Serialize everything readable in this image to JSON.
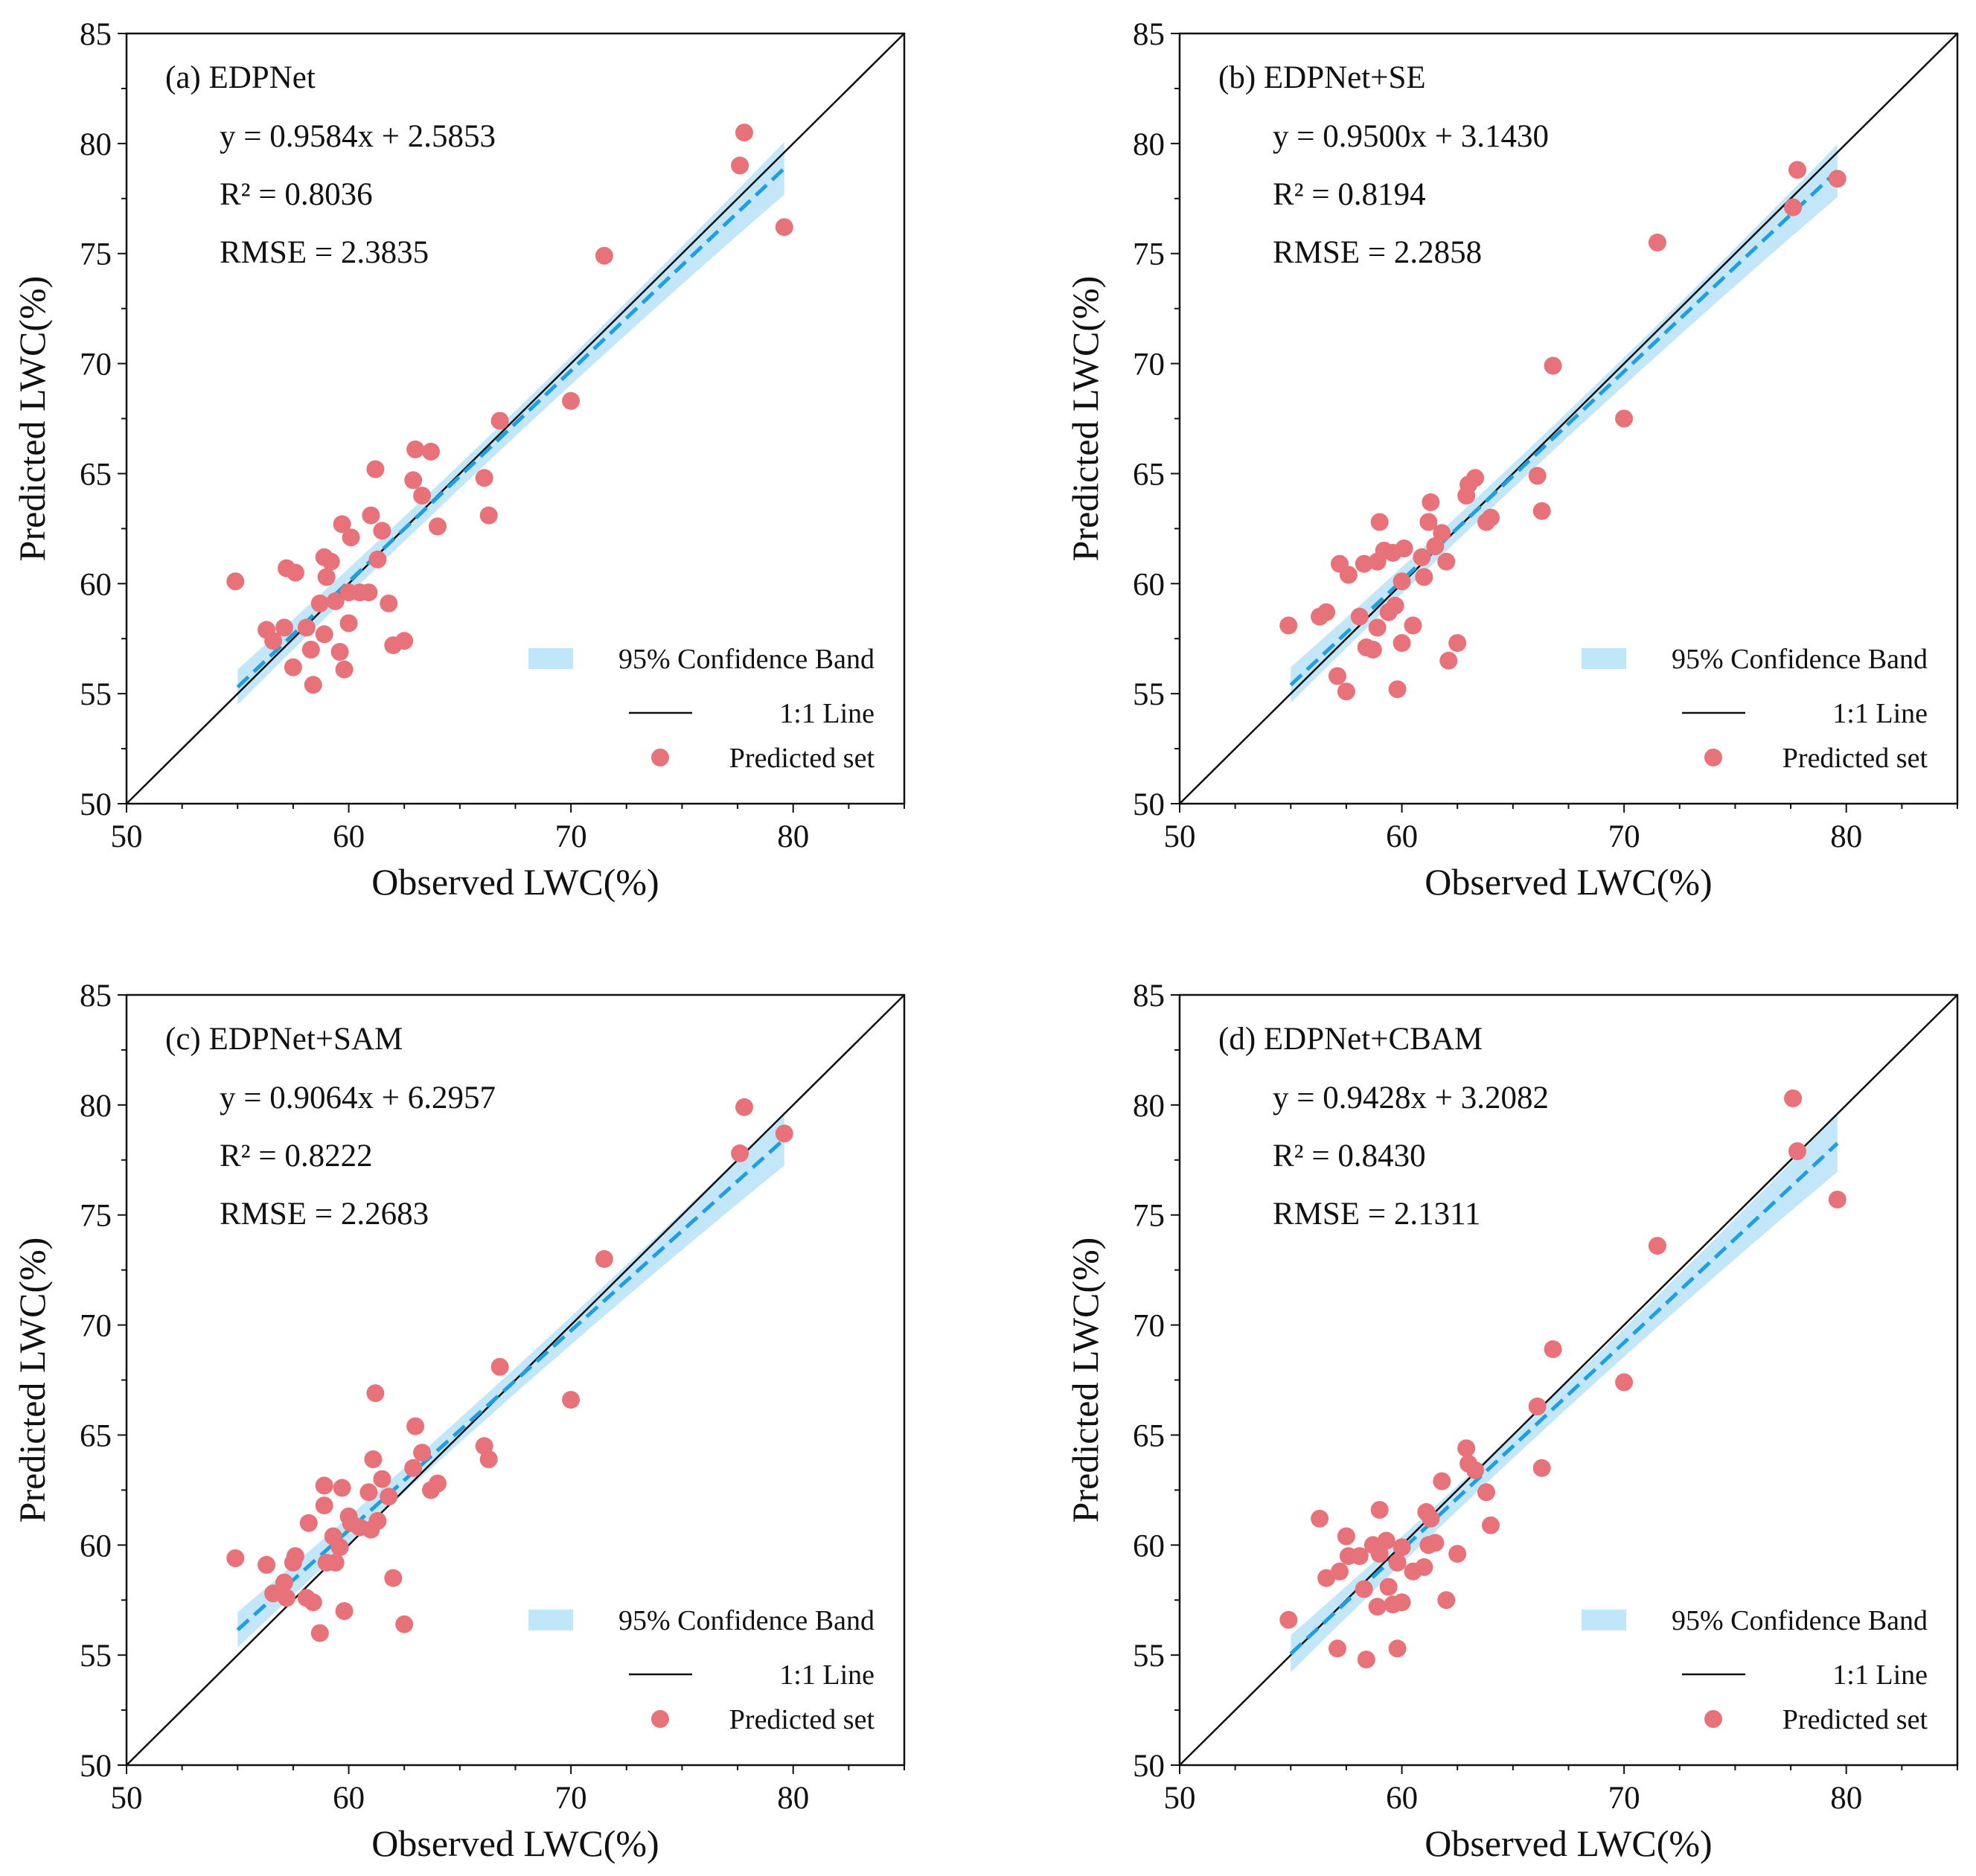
{
  "colors": {
    "band": "#b9e3f8",
    "fit": "#1f9ee0",
    "oneToOne": "#111111",
    "points": "#e8727a",
    "axis": "#111111"
  },
  "chart_data": [
    {
      "type": "scatter",
      "panel": "a",
      "title": "(a) EDPNet",
      "xlabel": "Observed LWC(%)",
      "ylabel": "Predicted LWC(%)",
      "xlim": [
        50,
        85
      ],
      "ylim": [
        50,
        85
      ],
      "xticks": [
        50,
        60,
        70,
        80
      ],
      "yticks": [
        50,
        55,
        60,
        65,
        70,
        75,
        80,
        85
      ],
      "equation": "y = 0.9584x + 2.5853",
      "r2_text": "R² = 0.8036",
      "rmse_text": "RMSE = 2.3835",
      "fit": {
        "slope": 0.9584,
        "intercept": 2.5853,
        "x_range": [
          55.0,
          79.6
        ]
      },
      "band": {
        "center_x": 64.5,
        "half_width_at_center": 0.55,
        "half_width_at_ends": 1.2
      },
      "legend": {
        "position": "lower-right",
        "band_label": "95% Confidence Band",
        "line_label": "1:1 Line",
        "points_label": "Predicted set"
      },
      "points": [
        [
          54.9,
          60.1
        ],
        [
          56.3,
          57.9
        ],
        [
          56.6,
          57.4
        ],
        [
          57.1,
          58.0
        ],
        [
          57.2,
          60.7
        ],
        [
          57.5,
          56.2
        ],
        [
          57.6,
          60.5
        ],
        [
          58.1,
          58.0
        ],
        [
          58.3,
          57.0
        ],
        [
          58.4,
          55.4
        ],
        [
          58.7,
          59.1
        ],
        [
          58.9,
          61.2
        ],
        [
          59.0,
          60.3
        ],
        [
          58.9,
          57.7
        ],
        [
          59.2,
          61.0
        ],
        [
          59.4,
          59.2
        ],
        [
          59.6,
          56.9
        ],
        [
          59.7,
          62.7
        ],
        [
          59.8,
          56.1
        ],
        [
          60.0,
          59.6
        ],
        [
          60.0,
          58.2
        ],
        [
          60.1,
          62.1
        ],
        [
          60.5,
          59.6
        ],
        [
          60.9,
          59.6
        ],
        [
          61.0,
          63.1
        ],
        [
          61.2,
          65.2
        ],
        [
          61.3,
          61.1
        ],
        [
          61.5,
          62.4
        ],
        [
          61.8,
          59.1
        ],
        [
          62.0,
          57.2
        ],
        [
          62.5,
          57.4
        ],
        [
          62.9,
          64.7
        ],
        [
          63.0,
          66.1
        ],
        [
          63.3,
          64.0
        ],
        [
          63.7,
          66.0
        ],
        [
          64.0,
          62.6
        ],
        [
          66.1,
          64.8
        ],
        [
          66.3,
          63.1
        ],
        [
          66.8,
          67.4
        ],
        [
          70.0,
          68.3
        ],
        [
          71.5,
          74.9
        ],
        [
          77.6,
          79.0
        ],
        [
          77.8,
          80.5
        ],
        [
          79.6,
          76.2
        ]
      ]
    },
    {
      "type": "scatter",
      "panel": "b",
      "title": "(b) EDPNet+SE",
      "xlabel": "Observed LWC(%)",
      "ylabel": "Predicted LWC(%)",
      "xlim": [
        50,
        85
      ],
      "ylim": [
        50,
        85
      ],
      "xticks": [
        50,
        60,
        70,
        80
      ],
      "yticks": [
        50,
        55,
        60,
        65,
        70,
        75,
        80,
        85
      ],
      "equation": "y = 0.9500x + 3.1430",
      "r2_text": "R² = 0.8194",
      "rmse_text": "RMSE = 2.2858",
      "fit": {
        "slope": 0.95,
        "intercept": 3.143,
        "x_range": [
          55.0,
          79.6
        ]
      },
      "band": {
        "center_x": 64.5,
        "half_width_at_center": 0.55,
        "half_width_at_ends": 1.2
      },
      "legend": {
        "position": "lower-right",
        "band_label": "95% Confidence Band",
        "line_label": "1:1 Line",
        "points_label": "Predicted set"
      },
      "points": [
        [
          54.9,
          58.1
        ],
        [
          56.3,
          58.5
        ],
        [
          56.6,
          58.7
        ],
        [
          57.1,
          55.8
        ],
        [
          57.2,
          60.9
        ],
        [
          57.5,
          55.1
        ],
        [
          57.6,
          60.4
        ],
        [
          58.1,
          58.5
        ],
        [
          58.3,
          60.9
        ],
        [
          58.4,
          57.1
        ],
        [
          58.7,
          57.0
        ],
        [
          58.9,
          58.0
        ],
        [
          59.0,
          62.8
        ],
        [
          58.9,
          61.0
        ],
        [
          59.2,
          61.5
        ],
        [
          59.4,
          58.7
        ],
        [
          59.6,
          61.4
        ],
        [
          59.7,
          59.0
        ],
        [
          59.8,
          55.2
        ],
        [
          60.0,
          57.3
        ],
        [
          60.0,
          60.1
        ],
        [
          60.1,
          61.6
        ],
        [
          60.5,
          58.1
        ],
        [
          60.9,
          61.2
        ],
        [
          61.0,
          60.3
        ],
        [
          61.2,
          62.8
        ],
        [
          61.3,
          63.7
        ],
        [
          61.5,
          61.7
        ],
        [
          61.8,
          62.3
        ],
        [
          62.0,
          61.0
        ],
        [
          62.1,
          56.5
        ],
        [
          62.5,
          57.3
        ],
        [
          62.9,
          64.0
        ],
        [
          63.0,
          64.5
        ],
        [
          63.3,
          64.8
        ],
        [
          63.8,
          62.8
        ],
        [
          64.0,
          63.0
        ],
        [
          66.1,
          64.9
        ],
        [
          66.3,
          63.3
        ],
        [
          66.8,
          69.9
        ],
        [
          70.0,
          67.5
        ],
        [
          71.5,
          75.5
        ],
        [
          77.6,
          77.1
        ],
        [
          77.8,
          78.8
        ],
        [
          79.6,
          78.4
        ]
      ]
    },
    {
      "type": "scatter",
      "panel": "c",
      "title": "(c) EDPNet+SAM",
      "xlabel": "Observed LWC(%)",
      "ylabel": "Predicted LWC(%)",
      "xlim": [
        50,
        85
      ],
      "ylim": [
        50,
        85
      ],
      "xticks": [
        50,
        60,
        70,
        80
      ],
      "yticks": [
        50,
        55,
        60,
        65,
        70,
        75,
        80,
        85
      ],
      "equation": "y = 0.9064x + 6.2957",
      "r2_text": "R² = 0.8222",
      "rmse_text": "RMSE = 2.2683",
      "fit": {
        "slope": 0.9064,
        "intercept": 6.2957,
        "x_range": [
          55.0,
          79.6
        ]
      },
      "band": {
        "center_x": 64.5,
        "half_width_at_center": 0.55,
        "half_width_at_ends": 1.2
      },
      "legend": {
        "position": "lower-right",
        "band_label": "95% Confidence Band",
        "line_label": "1:1 Line",
        "points_label": "Predicted set"
      },
      "points": [
        [
          54.9,
          59.4
        ],
        [
          56.3,
          59.1
        ],
        [
          56.6,
          57.8
        ],
        [
          57.1,
          58.3
        ],
        [
          57.2,
          57.6
        ],
        [
          57.5,
          59.2
        ],
        [
          57.6,
          59.5
        ],
        [
          58.1,
          57.6
        ],
        [
          58.2,
          61.0
        ],
        [
          58.4,
          57.4
        ],
        [
          58.7,
          56.0
        ],
        [
          58.9,
          62.7
        ],
        [
          58.9,
          61.8
        ],
        [
          59.0,
          59.2
        ],
        [
          59.3,
          60.4
        ],
        [
          59.4,
          59.2
        ],
        [
          59.6,
          59.9
        ],
        [
          59.7,
          62.6
        ],
        [
          59.8,
          57.0
        ],
        [
          60.0,
          61.3
        ],
        [
          60.1,
          61.0
        ],
        [
          60.5,
          60.8
        ],
        [
          60.9,
          62.4
        ],
        [
          61.0,
          60.7
        ],
        [
          61.1,
          63.9
        ],
        [
          61.2,
          66.9
        ],
        [
          61.3,
          61.1
        ],
        [
          61.5,
          63.0
        ],
        [
          61.8,
          62.2
        ],
        [
          62.0,
          58.5
        ],
        [
          62.5,
          56.4
        ],
        [
          62.9,
          63.5
        ],
        [
          63.0,
          65.4
        ],
        [
          63.3,
          64.2
        ],
        [
          63.7,
          62.5
        ],
        [
          64.0,
          62.8
        ],
        [
          66.1,
          64.5
        ],
        [
          66.3,
          63.9
        ],
        [
          66.8,
          68.1
        ],
        [
          70.0,
          66.6
        ],
        [
          71.5,
          73.0
        ],
        [
          77.6,
          77.8
        ],
        [
          77.8,
          79.9
        ],
        [
          79.6,
          78.7
        ]
      ]
    },
    {
      "type": "scatter",
      "panel": "d",
      "title": "(d) EDPNet+CBAM",
      "xlabel": "Observed LWC(%)",
      "ylabel": "Predicted LWC(%)",
      "xlim": [
        50,
        85
      ],
      "ylim": [
        50,
        85
      ],
      "xticks": [
        50,
        60,
        70,
        80
      ],
      "yticks": [
        50,
        55,
        60,
        65,
        70,
        75,
        80,
        85
      ],
      "equation": "y = 0.9428x + 3.2082",
      "r2_text": "R² = 0.8430",
      "rmse_text": "RMSE = 2.1311",
      "fit": {
        "slope": 0.9428,
        "intercept": 3.2082,
        "x_range": [
          55.0,
          79.6
        ]
      },
      "band": {
        "center_x": 64.5,
        "half_width_at_center": 0.55,
        "half_width_at_ends": 1.3
      },
      "legend": {
        "position": "lower-right",
        "band_label": "95% Confidence Band",
        "line_label": "1:1 Line",
        "points_label": "Predicted set"
      },
      "points": [
        [
          54.9,
          56.6
        ],
        [
          56.3,
          61.2
        ],
        [
          56.6,
          58.5
        ],
        [
          57.1,
          55.3
        ],
        [
          57.2,
          58.8
        ],
        [
          57.5,
          60.4
        ],
        [
          57.6,
          59.5
        ],
        [
          58.1,
          59.5
        ],
        [
          58.3,
          58.0
        ],
        [
          58.4,
          54.8
        ],
        [
          58.7,
          60.0
        ],
        [
          58.9,
          57.2
        ],
        [
          59.0,
          61.6
        ],
        [
          59.0,
          59.6
        ],
        [
          59.3,
          60.2
        ],
        [
          59.4,
          58.1
        ],
        [
          59.6,
          57.3
        ],
        [
          59.8,
          59.2
        ],
        [
          59.8,
          55.3
        ],
        [
          60.0,
          57.4
        ],
        [
          60.0,
          59.9
        ],
        [
          60.5,
          58.8
        ],
        [
          61.0,
          59.0
        ],
        [
          61.1,
          61.5
        ],
        [
          61.2,
          60.0
        ],
        [
          61.3,
          61.2
        ],
        [
          61.5,
          60.1
        ],
        [
          61.8,
          62.9
        ],
        [
          62.0,
          57.5
        ],
        [
          62.5,
          59.6
        ],
        [
          62.9,
          64.4
        ],
        [
          63.0,
          63.7
        ],
        [
          63.3,
          63.4
        ],
        [
          63.8,
          62.4
        ],
        [
          64.0,
          60.9
        ],
        [
          66.1,
          66.3
        ],
        [
          66.3,
          63.5
        ],
        [
          66.8,
          68.9
        ],
        [
          70.0,
          67.4
        ],
        [
          71.5,
          73.6
        ],
        [
          77.6,
          80.3
        ],
        [
          77.8,
          77.9
        ],
        [
          79.6,
          75.7
        ]
      ]
    }
  ]
}
